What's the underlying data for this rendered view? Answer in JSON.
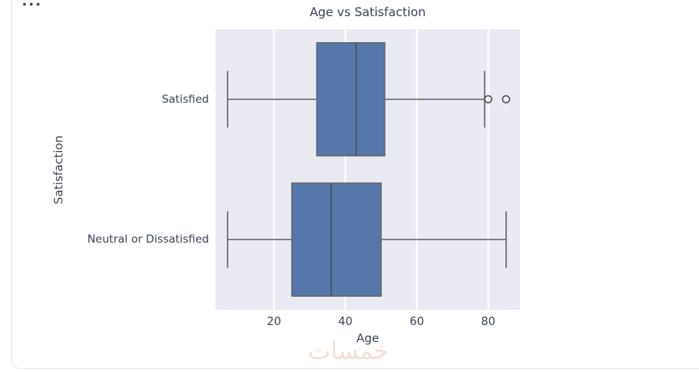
{
  "window": {
    "more_options": "•••"
  },
  "watermark": {
    "text": "خمسات"
  },
  "chart_data": {
    "type": "boxplot",
    "orientation": "horizontal",
    "title": "Age vs Satisfaction",
    "xlabel": "Age",
    "ylabel": "Satisfaction",
    "xlim": [
      3.6,
      88.9
    ],
    "xticks": [
      20,
      40,
      60,
      80
    ],
    "grid": true,
    "legend": false,
    "categories": [
      "Satisfied",
      "Neutral or Dissatisfied"
    ],
    "series": [
      {
        "name": "Satisfied",
        "whisker_min": 7,
        "q1": 32,
        "median": 43,
        "q3": 51,
        "whisker_max": 79,
        "outliers": [
          80,
          85
        ]
      },
      {
        "name": "Neutral or Dissatisfied",
        "whisker_min": 7,
        "q1": 25,
        "median": 36,
        "q3": 50,
        "whisker_max": 85,
        "outliers": []
      }
    ],
    "colors": {
      "box_fill": "#5677a9",
      "box_edge": "#62666d",
      "whisker": "#62666d",
      "median": "#4d5157",
      "outlier_stroke": "#4d5157",
      "outlier_fill": "#ffffff",
      "plot_bg": "#eaeaf2",
      "grid": "#ffffff",
      "text": "#3d4352"
    }
  }
}
